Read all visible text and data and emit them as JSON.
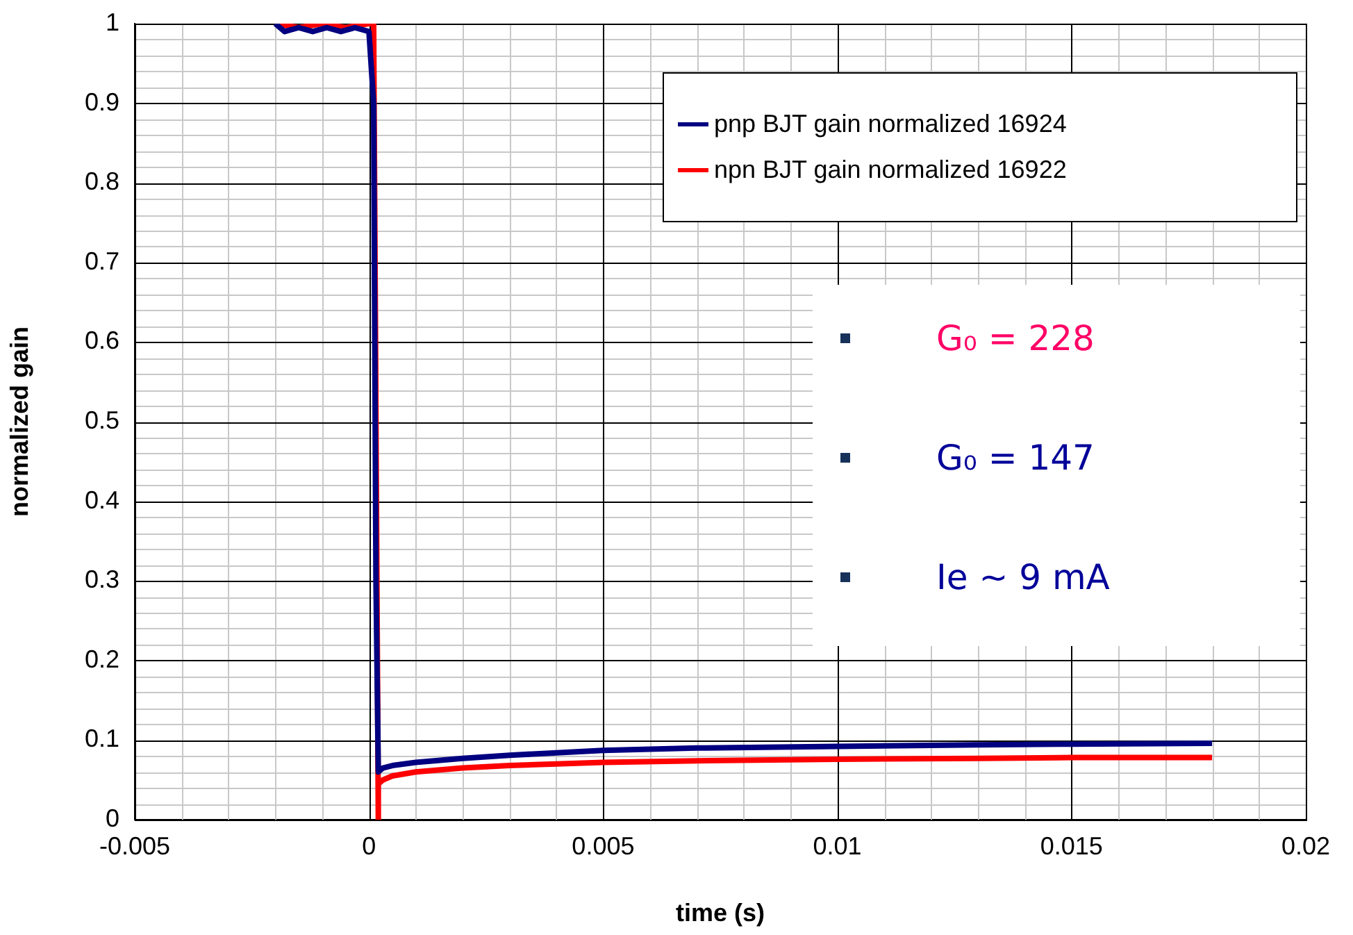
{
  "chart_data": {
    "type": "line",
    "xlabel": "time (s)",
    "ylabel": "normalized gain",
    "xlim": [
      -0.005,
      0.02
    ],
    "xticks": [
      -0.005,
      0,
      0.005,
      0.01,
      0.015,
      0.02
    ],
    "ylim": [
      0,
      1
    ],
    "yticks": [
      0,
      0.1,
      0.2,
      0.3,
      0.4,
      0.5,
      0.6,
      0.7,
      0.8,
      0.9,
      1
    ],
    "grid": true,
    "legend": "top right",
    "marker": "none",
    "line_style": "solid",
    "series": [
      {
        "name": "pnp BJT gain normalized 16924",
        "color": "#000080",
        "x": [
          -0.002,
          -0.0018,
          -0.0015,
          -0.0012,
          -0.0009,
          -0.0006,
          -0.0003,
          0,
          0.0001,
          0.00015,
          0.0002,
          0.0003,
          0.0005,
          0.001,
          0.002,
          0.003,
          0.004,
          0.005,
          0.007,
          0.01,
          0.013,
          0.015,
          0.018
        ],
        "values": [
          1,
          0.99,
          0.995,
          0.99,
          0.995,
          0.99,
          0.995,
          0.99,
          0.9,
          0.3,
          0.06,
          0.065,
          0.068,
          0.072,
          0.077,
          0.081,
          0.084,
          0.087,
          0.09,
          0.092,
          0.094,
          0.095,
          0.096
        ]
      },
      {
        "name": "npn BJT gain normalized 16922",
        "color": "#ff0000",
        "x": [
          -0.002,
          -0.0015,
          -0.001,
          -0.0005,
          0,
          0.0001,
          0.0002,
          0.0002,
          0.0003,
          0.0005,
          0.001,
          0.002,
          0.003,
          0.004,
          0.005,
          0.007,
          0.01,
          0.013,
          0.015,
          0.018
        ],
        "values": [
          1,
          0.995,
          1,
          0.995,
          1,
          1,
          0,
          0.045,
          0.05,
          0.055,
          0.06,
          0.065,
          0.068,
          0.07,
          0.072,
          0.074,
          0.076,
          0.077,
          0.078,
          0.078
        ]
      }
    ],
    "annotations": [
      "G₀ = 228",
      "G₀ = 147",
      "Ie ~ 9 mA"
    ]
  }
}
